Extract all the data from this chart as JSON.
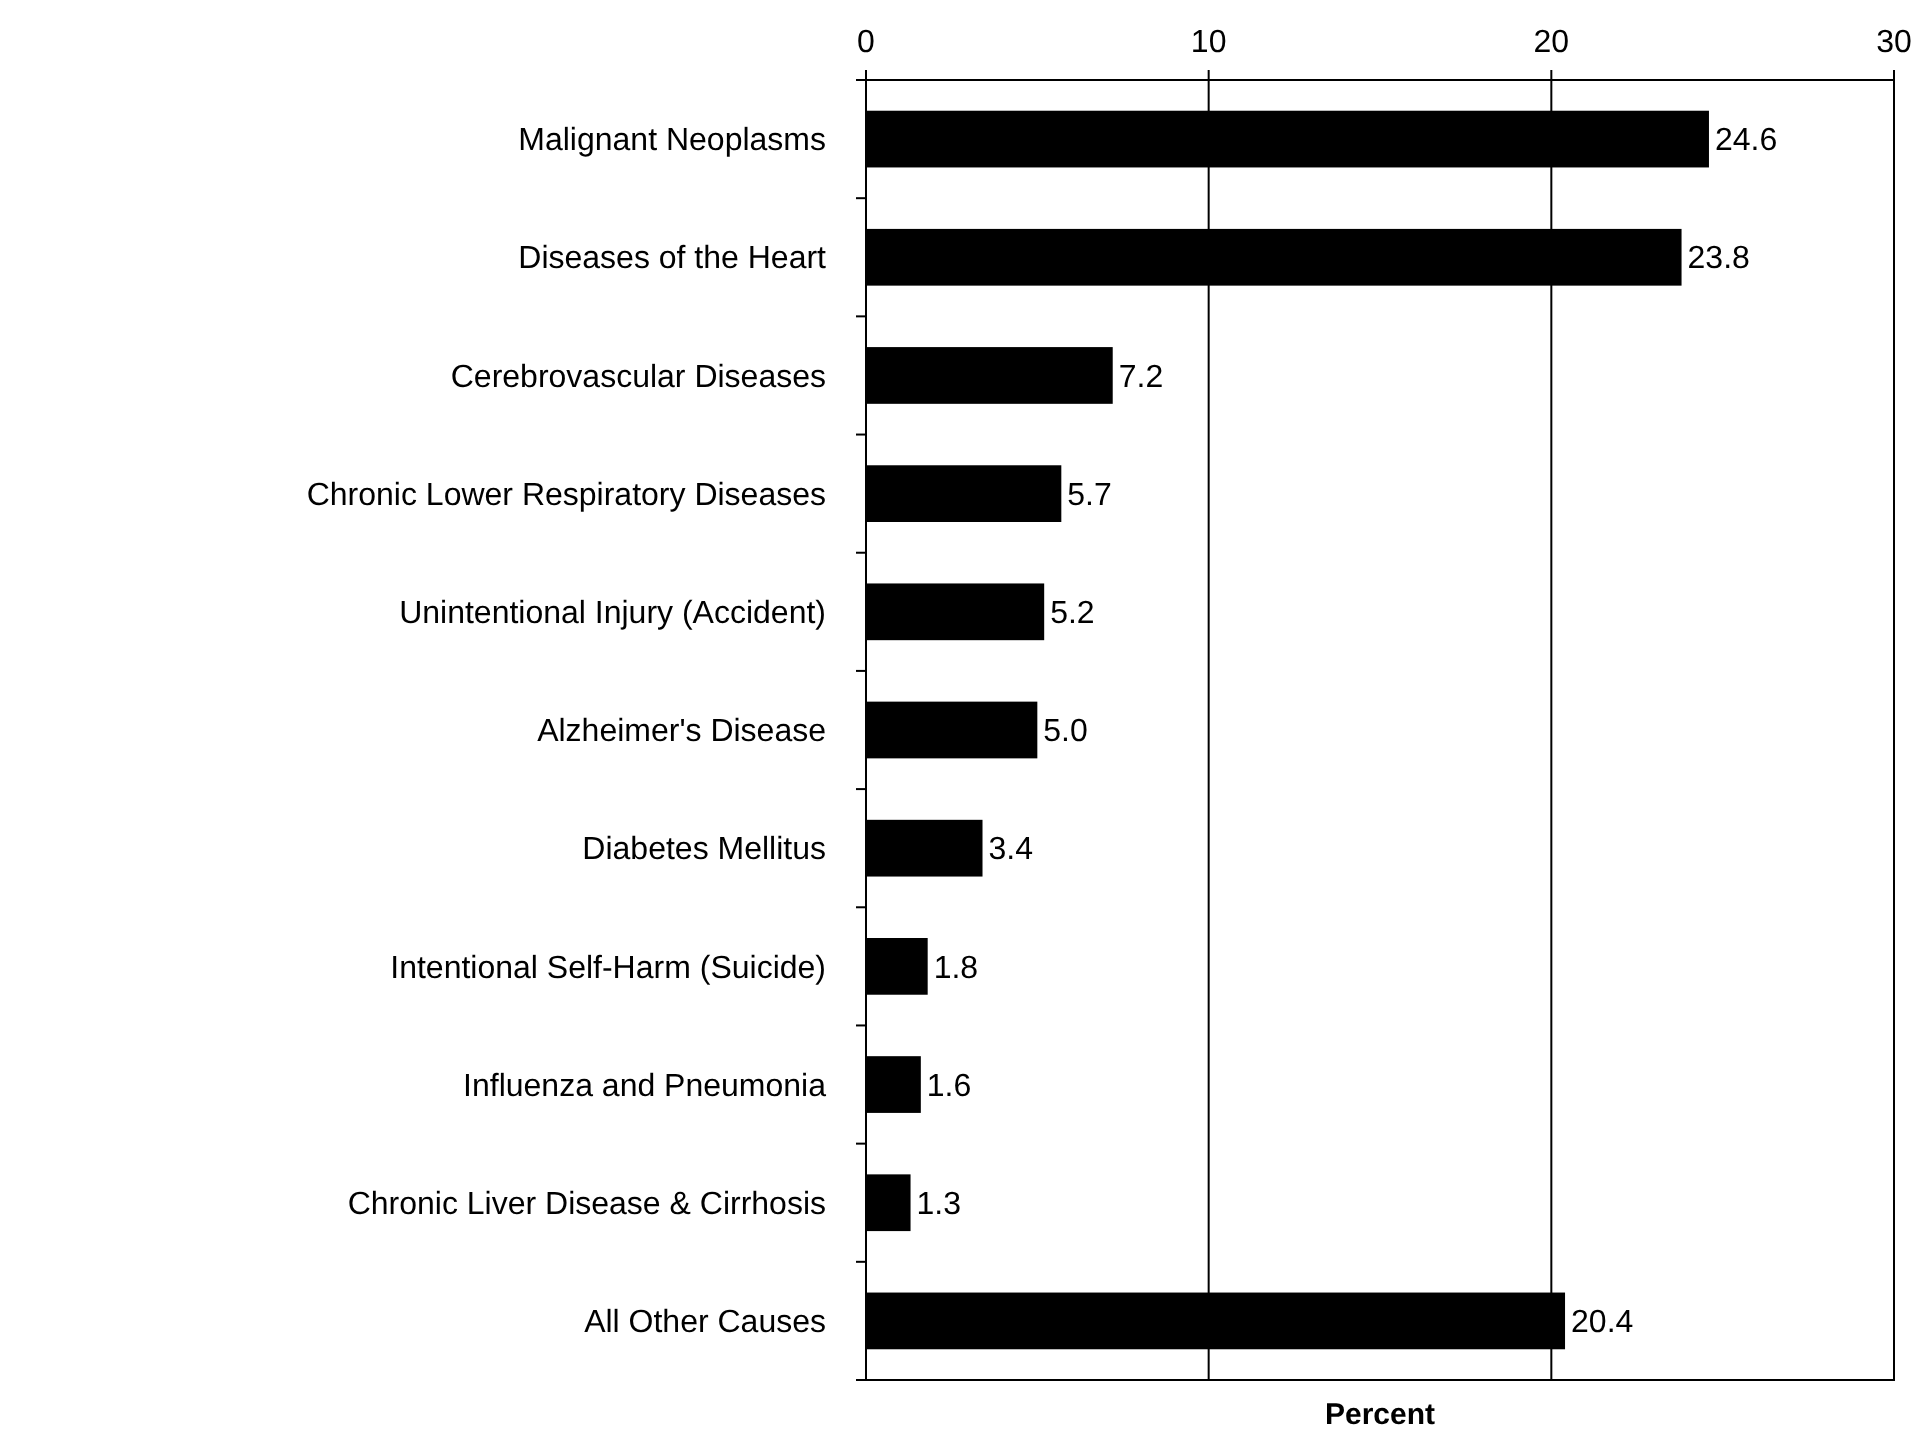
{
  "chart_data": {
    "type": "bar",
    "orientation": "horizontal",
    "xlabel": "Percent",
    "categories": [
      "Malignant Neoplasms",
      "Diseases of the Heart",
      "Cerebrovascular Diseases",
      "Chronic Lower Respiratory Diseases",
      "Unintentional Injury (Accident)",
      "Alzheimer's Disease",
      "Diabetes Mellitus",
      "Intentional Self-Harm (Suicide)",
      "Influenza and Pneumonia",
      "Chronic Liver Disease & Cirrhosis",
      "All Other Causes"
    ],
    "values": [
      24.6,
      23.8,
      7.2,
      5.7,
      5.2,
      5.0,
      3.4,
      1.8,
      1.6,
      1.3,
      20.4
    ],
    "value_labels": [
      "24.6",
      "23.8",
      "7.2",
      "5.7",
      "5.2",
      "5.0",
      "3.4",
      "1.8",
      "1.6",
      "1.3",
      "20.4"
    ],
    "color": "#000000",
    "xlim": [
      0,
      30
    ],
    "xticks": [
      0,
      10,
      20,
      30
    ],
    "grid": "x"
  }
}
